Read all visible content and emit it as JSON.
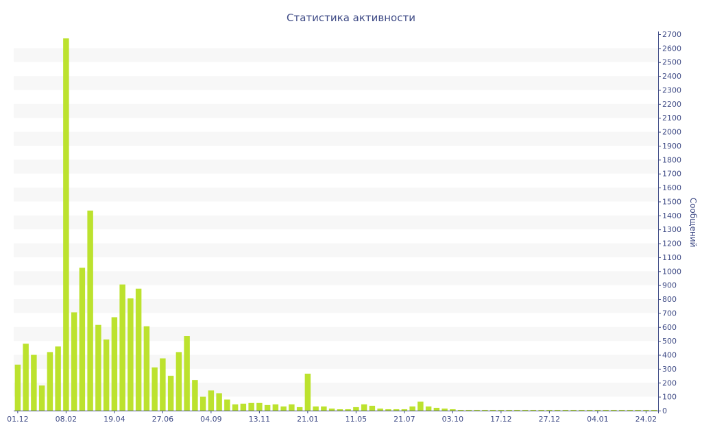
{
  "chart_data": {
    "type": "bar",
    "title": "Статистика активности",
    "ylabel": "Сообщений",
    "xlabel": "",
    "ylim": [
      0,
      2700
    ],
    "y_ticks": [
      0,
      100,
      200,
      300,
      400,
      500,
      600,
      700,
      800,
      900,
      1000,
      1100,
      1200,
      1300,
      1400,
      1500,
      1600,
      1700,
      1800,
      1900,
      2000,
      2100,
      2200,
      2300,
      2400,
      2500,
      2600,
      2700
    ],
    "x_tick_labels": [
      "01.12",
      "08.02",
      "19.04",
      "27.06",
      "04.09",
      "13.11",
      "21.01",
      "11.05",
      "21.07",
      "03.10",
      "17.12",
      "27.12",
      "04.01",
      "24.02"
    ],
    "x_tick_index": [
      0,
      6,
      12,
      18,
      24,
      30,
      36,
      42,
      48,
      54,
      60,
      66,
      72,
      78
    ],
    "values": [
      330,
      480,
      400,
      180,
      420,
      460,
      2670,
      705,
      1025,
      1435,
      615,
      510,
      670,
      905,
      805,
      875,
      605,
      310,
      375,
      250,
      420,
      535,
      220,
      100,
      145,
      125,
      80,
      45,
      50,
      55,
      55,
      40,
      45,
      30,
      45,
      25,
      265,
      30,
      30,
      15,
      10,
      10,
      25,
      45,
      35,
      15,
      10,
      10,
      10,
      30,
      65,
      30,
      20,
      15,
      10,
      5,
      5,
      5,
      5,
      5,
      5,
      5,
      5,
      5,
      5,
      5,
      5,
      5,
      5,
      5,
      5,
      5,
      5,
      5,
      5,
      5,
      5,
      5,
      5,
      5
    ],
    "bar_color": "#bce22e",
    "axis_color": "#3e4a85",
    "band_color": "#f7f7f7",
    "grid": "alternating bands",
    "y_axis_position": "right",
    "legend": "none"
  }
}
